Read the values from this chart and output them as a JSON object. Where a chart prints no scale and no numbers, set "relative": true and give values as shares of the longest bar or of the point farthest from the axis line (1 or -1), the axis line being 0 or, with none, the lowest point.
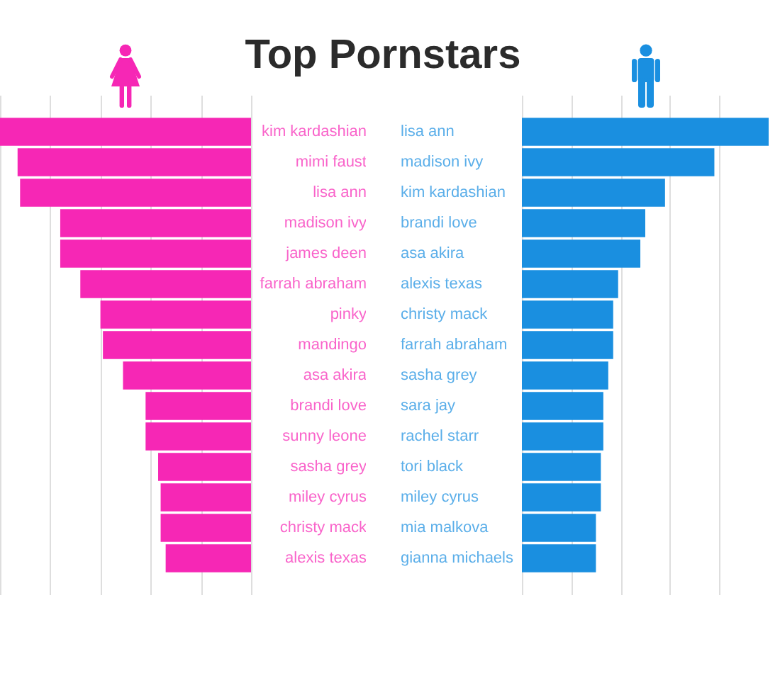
{
  "chart_data": [
    {
      "type": "bar",
      "title": "Top Pornstars",
      "orientation": "horizontal",
      "relative": true,
      "grid": "x",
      "color": "#f627b5",
      "categories": [
        "kim kardashian",
        "mimi faust",
        "lisa ann",
        "madison ivy",
        "james deen",
        "farrah abraham",
        "pinky",
        "mandingo",
        "asa akira",
        "brandi love",
        "sunny leone",
        "sasha grey",
        "miley cyrus",
        "christy mack",
        "alexis texas"
      ],
      "values": [
        1,
        0.93,
        0.92,
        0.76,
        0.76,
        0.68,
        0.6,
        0.59,
        0.51,
        0.42,
        0.42,
        0.37,
        0.36,
        0.36,
        0.34
      ]
    },
    {
      "type": "bar",
      "orientation": "horizontal",
      "relative": true,
      "grid": "x",
      "color": "#1a8fe0",
      "categories": [
        "lisa ann",
        "madison ivy",
        "kim kardashian",
        "brandi love",
        "asa akira",
        "alexis texas",
        "christy mack",
        "farrah abraham",
        "sasha grey",
        "sara jay",
        "rachel starr",
        "tori black",
        "miley cyrus",
        "mia malkova",
        "gianna michaels"
      ],
      "values": [
        1,
        0.78,
        0.58,
        0.5,
        0.48,
        0.39,
        0.37,
        0.37,
        0.35,
        0.33,
        0.33,
        0.32,
        0.32,
        0.3,
        0.3
      ]
    }
  ]
}
